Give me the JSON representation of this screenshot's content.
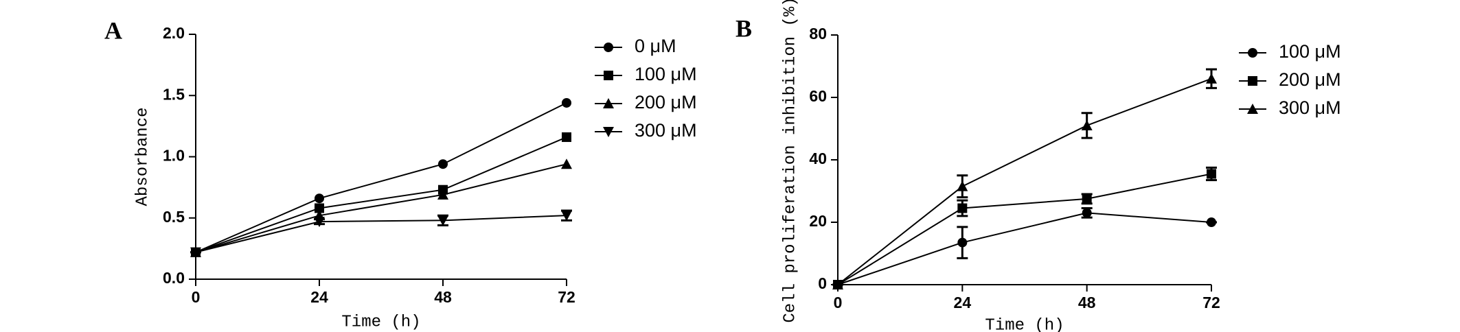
{
  "chart_data": [
    {
      "type": "line",
      "panel": "A",
      "x_label": "Time (h)",
      "y_label": "Absorbance",
      "x": [
        0,
        24,
        48,
        72
      ],
      "xlim": [
        0,
        72
      ],
      "xticks": [
        0,
        24,
        48,
        72
      ],
      "ylim": [
        0,
        2
      ],
      "yticks": [
        {
          "value": 0,
          "label": "0.0"
        },
        0.5,
        {
          "value": 1,
          "label": "1.0"
        },
        1.5,
        {
          "value": 2,
          "label": "2.0"
        }
      ],
      "series": [
        {
          "name": "0 μM",
          "color": "#000000",
          "marker": "circle",
          "values": [
            0.22,
            0.66,
            0.94,
            1.44
          ]
        },
        {
          "name": "100 μM",
          "color": "#000000",
          "marker": "square",
          "values": [
            0.22,
            0.58,
            0.73,
            1.16
          ]
        },
        {
          "name": "200 μM",
          "color": "#000000",
          "marker": "triangle-up",
          "values": [
            0.22,
            0.52,
            0.69,
            0.94
          ]
        },
        {
          "name": "300 μM",
          "color": "#000000",
          "marker": "triangle-down",
          "values": [
            0.22,
            0.47,
            0.48,
            0.52
          ],
          "errors": [
            0,
            0.02,
            0.04,
            0.04
          ]
        }
      ]
    },
    {
      "type": "line",
      "panel": "B",
      "x_label": "Time (h)",
      "y_label": "Cell proliferation inhibition (%)",
      "x": [
        0,
        24,
        48,
        72
      ],
      "xlim": [
        0,
        72
      ],
      "xticks": [
        0,
        24,
        48,
        72
      ],
      "ylim": [
        0,
        80
      ],
      "yticks": [
        0,
        20,
        40,
        60,
        80
      ],
      "series": [
        {
          "name": "100 μM",
          "color": "#000000",
          "marker": "circle",
          "values": [
            0,
            13.5,
            23,
            20
          ],
          "errors": [
            0,
            5,
            1.5,
            0
          ]
        },
        {
          "name": "200 μM",
          "color": "#000000",
          "marker": "square",
          "values": [
            0,
            24.5,
            27.5,
            35.5
          ],
          "errors": [
            0,
            2.5,
            1.5,
            2
          ]
        },
        {
          "name": "300 μM",
          "color": "#000000",
          "marker": "triangle-up",
          "values": [
            0,
            31.5,
            51,
            66
          ],
          "errors": [
            0,
            3.5,
            4,
            3
          ]
        }
      ]
    }
  ]
}
